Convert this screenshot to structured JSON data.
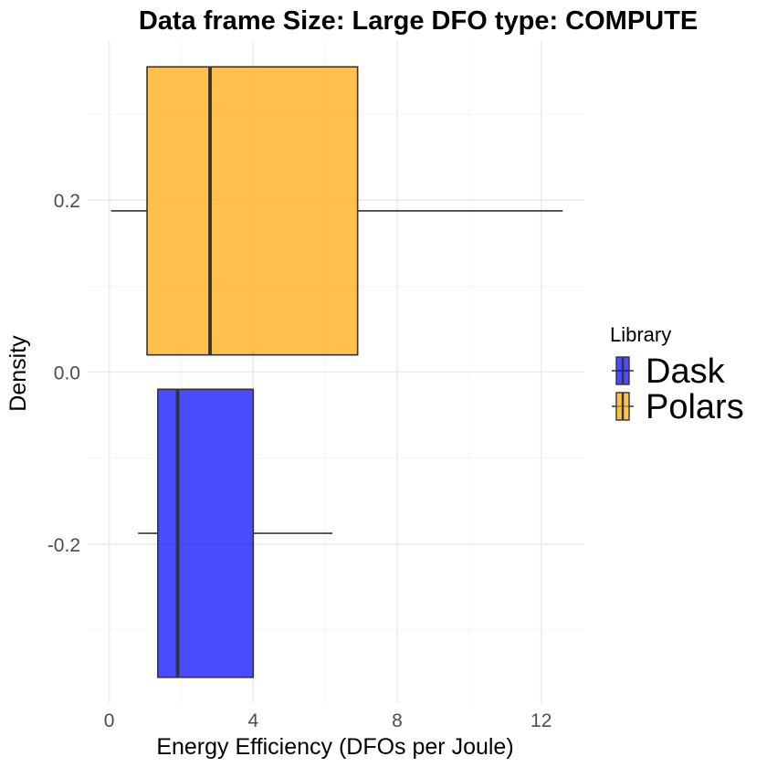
{
  "chart_data": {
    "type": "boxplot",
    "title": "Data frame Size: Large   DFO type: COMPUTE",
    "xlabel": "Energy Efficiency (DFOs per Joule)",
    "ylabel": "Density",
    "xlim": [
      -0.6,
      13.2
    ],
    "ylim": [
      -0.385,
      0.385
    ],
    "x_ticks": [
      0,
      4,
      8,
      12
    ],
    "x_tick_labels": [
      "0",
      "4",
      "8",
      "12"
    ],
    "y_ticks": [
      -0.2,
      0.0,
      0.2
    ],
    "y_tick_labels": [
      "-0.2",
      "0.0",
      "0.2"
    ],
    "grid": true,
    "legend": {
      "title": "Library",
      "placement": "right"
    },
    "series": [
      {
        "name": "Dask",
        "color": "#0000FF",
        "y_center": -0.1875,
        "box_y_range": [
          -0.355,
          -0.02
        ],
        "min": 0.8,
        "q1": 1.35,
        "median": 1.9,
        "q3": 4.0,
        "max": 6.2
      },
      {
        "name": "Polars",
        "color": "#FFA500",
        "y_center": 0.1875,
        "box_y_range": [
          0.02,
          0.355
        ],
        "min": 0.05,
        "q1": 1.05,
        "median": 2.8,
        "q3": 6.9,
        "max": 12.6
      }
    ]
  }
}
